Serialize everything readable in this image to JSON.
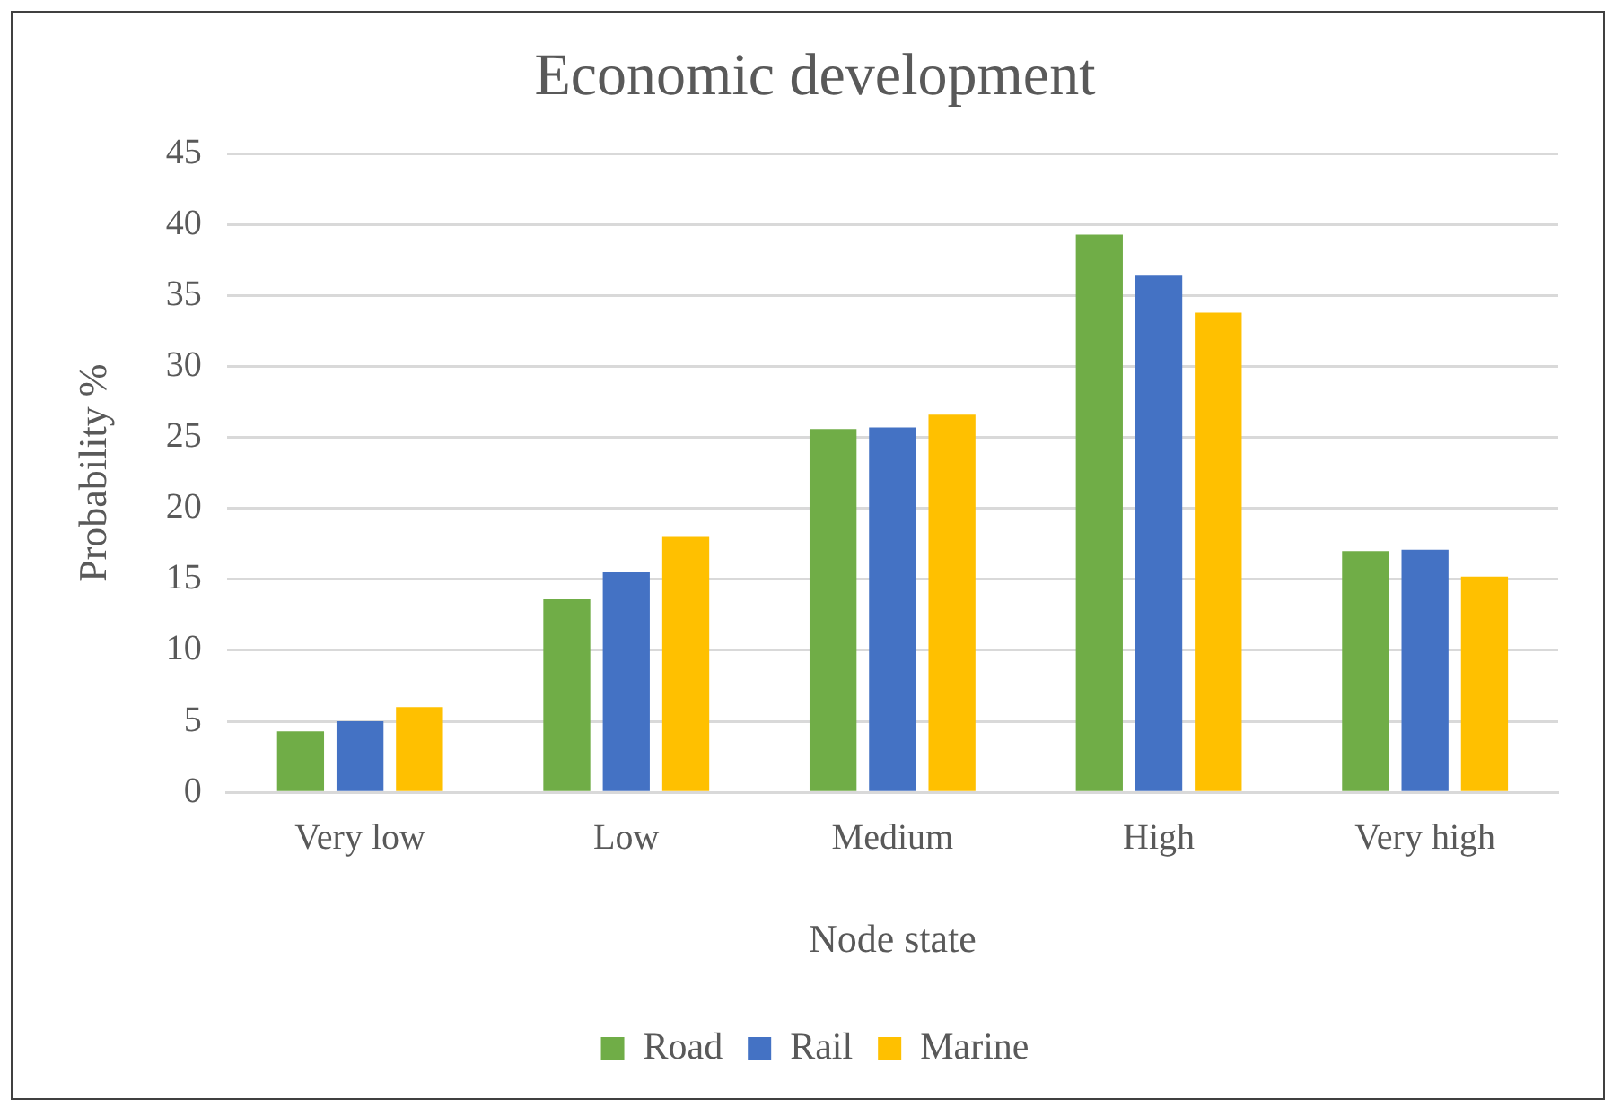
{
  "chart_data": {
    "type": "bar",
    "title": "Economic development",
    "xlabel": "Node state",
    "ylabel": "Probability %",
    "categories": [
      "Very low",
      "Low",
      "Medium",
      "High",
      "Very high"
    ],
    "series": [
      {
        "name": "Road",
        "color": "#70ad47",
        "values": [
          4.3,
          13.6,
          25.6,
          39.3,
          17.0
        ]
      },
      {
        "name": "Rail",
        "color": "#4472c4",
        "values": [
          5.0,
          15.5,
          25.7,
          36.4,
          17.1
        ]
      },
      {
        "name": "Marine",
        "color": "#ffc000",
        "values": [
          6.0,
          18.0,
          26.6,
          33.8,
          15.2
        ]
      }
    ],
    "ylim": [
      0,
      45
    ],
    "yticks": [
      0,
      5,
      10,
      15,
      20,
      25,
      30,
      35,
      40,
      45
    ],
    "grid": "y",
    "legend": "bottom"
  }
}
